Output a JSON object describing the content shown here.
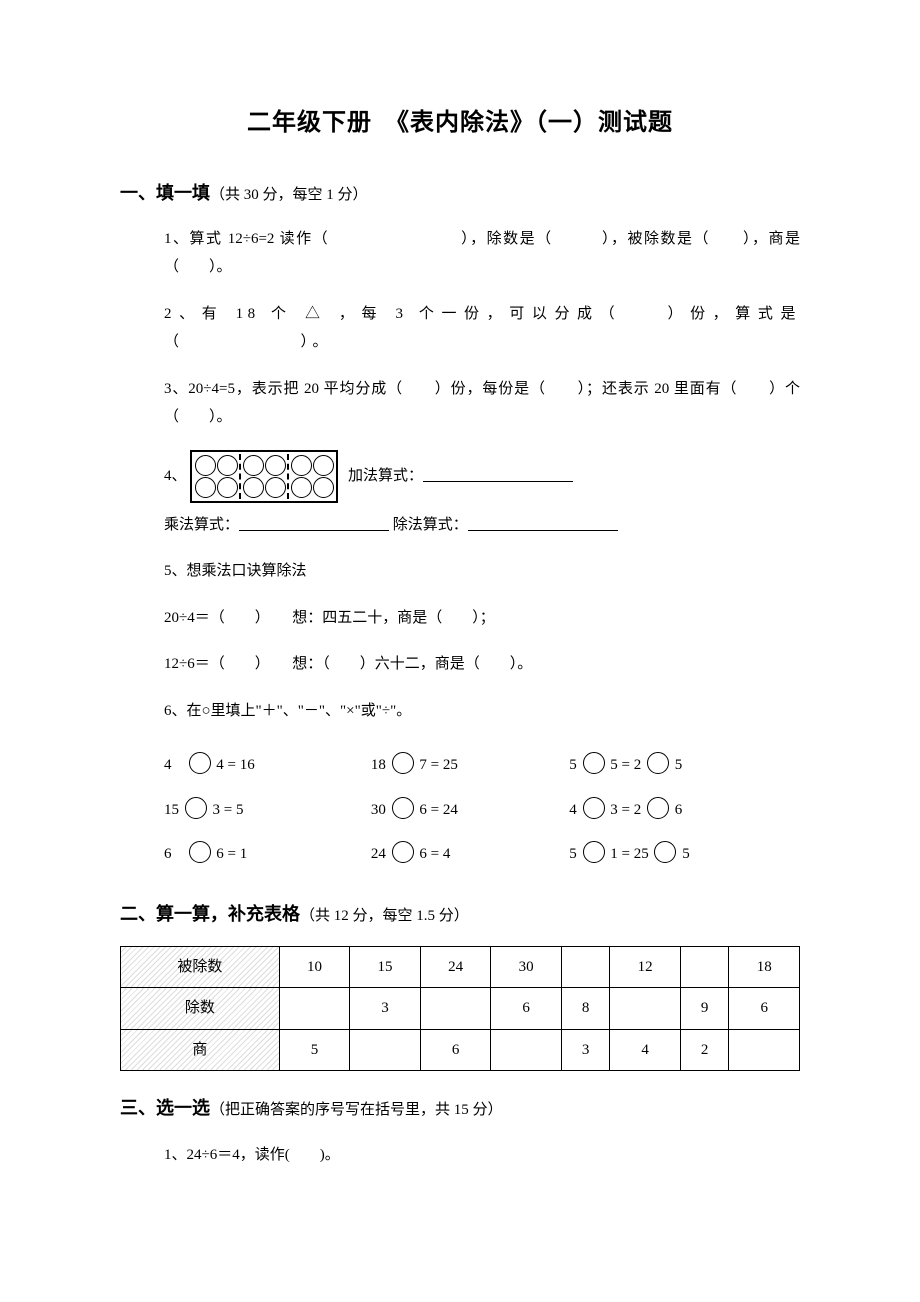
{
  "title": "二年级下册　《表内除法》（一）测试题",
  "section1": {
    "header": "一、填一填",
    "sub": "（共 30 分，每空 1 分）",
    "q1": "1、算式 12÷6=2 读作（　　　　　　　　），除数是（　　　），被除数是（　　），商是（　　）。",
    "q2": "2、有 18 个 △ ，每 3 个一份，可以分成（　　）份，算式是（　　　　　　）。",
    "q3": "3、20÷4=5，表示把 20 平均分成（　　）份，每份是（　　）；还表示 20 里面有（　　）个（　　）。",
    "q4_prefix": "4、",
    "q4_suffix": "加法算式：",
    "q4_line2_a": "乘法算式：",
    "q4_line2_b": "除法算式：",
    "q5": "5、想乘法口诀算除法",
    "q5a": "20÷4＝（　　）　　想：四五二十，商是（　　）；",
    "q5b": "12÷6＝（　　）　　想：（　　）六十二，商是（　　）。",
    "q6": "6、在○里填上\"＋\"、\"－\"、\"×\"或\"÷\"。",
    "q6_rows": [
      {
        "a": [
          "4",
          "4 = 16"
        ],
        "b": [
          "18",
          "7 = 25"
        ],
        "c": [
          "5",
          "5 = 2",
          "5"
        ]
      },
      {
        "a": [
          "15",
          "3 = 5"
        ],
        "b": [
          "30",
          "6 = 24"
        ],
        "c": [
          "4",
          "3 = 2",
          "6"
        ]
      },
      {
        "a": [
          "6",
          "6 = 1"
        ],
        "b": [
          "24",
          "6 = 4"
        ],
        "c": [
          "5",
          "1 = 25",
          "5"
        ]
      }
    ]
  },
  "section2": {
    "header": "二、算一算，补充表格",
    "sub": "（共 12 分，每空 1.5 分）",
    "row_labels": [
      "被除数",
      "除数",
      "商"
    ],
    "rows": [
      [
        "10",
        "15",
        "24",
        "30",
        "",
        "12",
        "",
        "18"
      ],
      [
        "",
        "3",
        "",
        "6",
        "8",
        "",
        "9",
        "6"
      ],
      [
        "5",
        "",
        "6",
        "",
        "3",
        "4",
        "2",
        ""
      ]
    ]
  },
  "section3": {
    "header": "三、选一选",
    "sub": "（把正确答案的序号写在括号里，共 15 分）",
    "q1": "1、24÷6＝4，读作(　　)。"
  }
}
